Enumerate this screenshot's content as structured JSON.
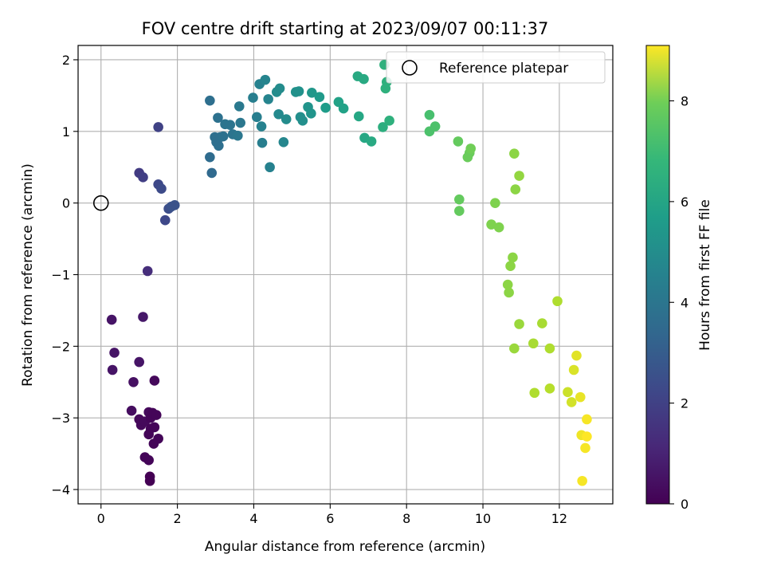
{
  "chart_data": {
    "type": "scatter",
    "title": "FOV centre drift starting at 2023/09/07 00:11:37",
    "xlabel": "Angular distance from reference (arcmin)",
    "ylabel": "Rotation from reference (arcmin)",
    "xlim": [
      -0.6,
      13.4
    ],
    "ylim": [
      -4.2,
      2.2
    ],
    "xticks": [
      0,
      2,
      4,
      6,
      8,
      10,
      12
    ],
    "yticks": [
      -4,
      -3,
      -2,
      -1,
      0,
      1,
      2
    ],
    "grid": true,
    "colormap": "viridis",
    "colorbar": {
      "label": "Hours from first FF file",
      "range": [
        0,
        9.1
      ],
      "ticks": [
        0,
        2,
        4,
        6,
        8
      ]
    },
    "legend": {
      "location": "top-right",
      "entries": [
        "Reference platepar"
      ]
    },
    "reference_point": {
      "x": 0,
      "y": 0
    },
    "points": [
      {
        "x": 0.28,
        "y": -1.63,
        "h": 0.5
      },
      {
        "x": 0.35,
        "y": -2.09,
        "h": 0.5
      },
      {
        "x": 0.3,
        "y": -2.33,
        "h": 0.5
      },
      {
        "x": 0.85,
        "y": -2.5,
        "h": 0.4
      },
      {
        "x": 0.8,
        "y": -2.9,
        "h": 0.3
      },
      {
        "x": 1.0,
        "y": -2.22,
        "h": 0.5
      },
      {
        "x": 1.1,
        "y": -1.59,
        "h": 0.6
      },
      {
        "x": 1.0,
        "y": -3.02,
        "h": 0.2
      },
      {
        "x": 1.05,
        "y": -3.1,
        "h": 0.2
      },
      {
        "x": 1.15,
        "y": -3.05,
        "h": 0.2
      },
      {
        "x": 1.25,
        "y": -2.92,
        "h": 0.2
      },
      {
        "x": 1.3,
        "y": -3.0,
        "h": 0.1
      },
      {
        "x": 1.35,
        "y": -2.93,
        "h": 0.1
      },
      {
        "x": 1.45,
        "y": -2.96,
        "h": 0.1
      },
      {
        "x": 1.3,
        "y": -3.15,
        "h": 0.1
      },
      {
        "x": 1.4,
        "y": -3.13,
        "h": 0.1
      },
      {
        "x": 1.25,
        "y": -3.23,
        "h": 0.1
      },
      {
        "x": 1.5,
        "y": -3.29,
        "h": 0.1
      },
      {
        "x": 1.38,
        "y": -3.36,
        "h": 0.1
      },
      {
        "x": 1.15,
        "y": -3.55,
        "h": 0.1
      },
      {
        "x": 1.25,
        "y": -3.59,
        "h": 0.1
      },
      {
        "x": 1.28,
        "y": -3.82,
        "h": 0.0
      },
      {
        "x": 1.28,
        "y": -3.88,
        "h": 0.0
      },
      {
        "x": 1.4,
        "y": -2.48,
        "h": 0.2
      },
      {
        "x": 1.22,
        "y": -0.95,
        "h": 1.2
      },
      {
        "x": 1.0,
        "y": 0.42,
        "h": 1.6
      },
      {
        "x": 1.1,
        "y": 0.36,
        "h": 1.7
      },
      {
        "x": 1.5,
        "y": 1.06,
        "h": 1.8
      },
      {
        "x": 1.5,
        "y": 0.26,
        "h": 2.0
      },
      {
        "x": 1.58,
        "y": 0.2,
        "h": 2.1
      },
      {
        "x": 1.68,
        "y": -0.24,
        "h": 2.0
      },
      {
        "x": 1.77,
        "y": -0.08,
        "h": 2.2
      },
      {
        "x": 1.84,
        "y": -0.05,
        "h": 2.3
      },
      {
        "x": 1.93,
        "y": -0.03,
        "h": 2.3
      },
      {
        "x": 2.85,
        "y": 1.43,
        "h": 3.3
      },
      {
        "x": 2.85,
        "y": 0.64,
        "h": 3.2
      },
      {
        "x": 2.9,
        "y": 0.42,
        "h": 3.1
      },
      {
        "x": 2.98,
        "y": 0.92,
        "h": 3.3
      },
      {
        "x": 3.02,
        "y": 0.85,
        "h": 3.3
      },
      {
        "x": 3.06,
        "y": 1.19,
        "h": 3.4
      },
      {
        "x": 3.08,
        "y": 0.8,
        "h": 3.3
      },
      {
        "x": 3.12,
        "y": 0.92,
        "h": 3.3
      },
      {
        "x": 3.2,
        "y": 0.93,
        "h": 3.4
      },
      {
        "x": 3.25,
        "y": 1.1,
        "h": 3.5
      },
      {
        "x": 3.38,
        "y": 1.09,
        "h": 3.5
      },
      {
        "x": 3.45,
        "y": 0.96,
        "h": 3.5
      },
      {
        "x": 3.58,
        "y": 0.94,
        "h": 3.6
      },
      {
        "x": 3.62,
        "y": 1.35,
        "h": 3.7
      },
      {
        "x": 3.65,
        "y": 1.12,
        "h": 3.6
      },
      {
        "x": 3.98,
        "y": 1.47,
        "h": 3.9
      },
      {
        "x": 4.08,
        "y": 1.2,
        "h": 3.9
      },
      {
        "x": 4.15,
        "y": 1.66,
        "h": 4.0
      },
      {
        "x": 4.2,
        "y": 1.07,
        "h": 4.0
      },
      {
        "x": 4.22,
        "y": 0.84,
        "h": 3.9
      },
      {
        "x": 4.3,
        "y": 1.72,
        "h": 4.1
      },
      {
        "x": 4.38,
        "y": 1.45,
        "h": 4.1
      },
      {
        "x": 4.42,
        "y": 0.5,
        "h": 4.0
      },
      {
        "x": 4.6,
        "y": 1.55,
        "h": 4.4
      },
      {
        "x": 4.68,
        "y": 1.6,
        "h": 4.4
      },
      {
        "x": 4.65,
        "y": 1.24,
        "h": 4.3
      },
      {
        "x": 4.78,
        "y": 0.85,
        "h": 4.2
      },
      {
        "x": 4.85,
        "y": 1.17,
        "h": 4.4
      },
      {
        "x": 5.1,
        "y": 1.55,
        "h": 4.6
      },
      {
        "x": 5.18,
        "y": 1.56,
        "h": 4.6
      },
      {
        "x": 5.22,
        "y": 1.2,
        "h": 4.5
      },
      {
        "x": 5.28,
        "y": 1.15,
        "h": 4.5
      },
      {
        "x": 5.42,
        "y": 1.34,
        "h": 4.7
      },
      {
        "x": 5.5,
        "y": 1.25,
        "h": 4.7
      },
      {
        "x": 5.52,
        "y": 1.54,
        "h": 4.8
      },
      {
        "x": 5.72,
        "y": 1.48,
        "h": 4.9
      },
      {
        "x": 5.88,
        "y": 1.33,
        "h": 5.0
      },
      {
        "x": 6.22,
        "y": 1.41,
        "h": 5.2
      },
      {
        "x": 6.35,
        "y": 1.32,
        "h": 5.2
      },
      {
        "x": 6.72,
        "y": 1.77,
        "h": 5.5
      },
      {
        "x": 6.75,
        "y": 1.21,
        "h": 5.4
      },
      {
        "x": 6.88,
        "y": 1.73,
        "h": 5.5
      },
      {
        "x": 6.9,
        "y": 0.91,
        "h": 5.4
      },
      {
        "x": 7.08,
        "y": 0.86,
        "h": 5.5
      },
      {
        "x": 7.38,
        "y": 1.06,
        "h": 5.7
      },
      {
        "x": 7.42,
        "y": 1.93,
        "h": 5.8
      },
      {
        "x": 7.45,
        "y": 1.6,
        "h": 5.8
      },
      {
        "x": 7.48,
        "y": 1.69,
        "h": 5.8
      },
      {
        "x": 7.55,
        "y": 1.15,
        "h": 5.8
      },
      {
        "x": 8.6,
        "y": 1.23,
        "h": 6.4
      },
      {
        "x": 8.6,
        "y": 1.0,
        "h": 6.5
      },
      {
        "x": 8.75,
        "y": 1.07,
        "h": 6.5
      },
      {
        "x": 9.35,
        "y": 0.86,
        "h": 6.9
      },
      {
        "x": 9.38,
        "y": 0.05,
        "h": 6.9
      },
      {
        "x": 9.38,
        "y": -0.11,
        "h": 6.9
      },
      {
        "x": 9.6,
        "y": 0.64,
        "h": 7.0
      },
      {
        "x": 9.65,
        "y": 0.7,
        "h": 7.0
      },
      {
        "x": 9.68,
        "y": 0.76,
        "h": 7.1
      },
      {
        "x": 10.22,
        "y": -0.3,
        "h": 7.3
      },
      {
        "x": 10.32,
        "y": 0.0,
        "h": 7.3
      },
      {
        "x": 10.42,
        "y": -0.34,
        "h": 7.3
      },
      {
        "x": 10.65,
        "y": -1.14,
        "h": 7.5
      },
      {
        "x": 10.68,
        "y": -1.25,
        "h": 7.5
      },
      {
        "x": 10.72,
        "y": -0.88,
        "h": 7.5
      },
      {
        "x": 10.78,
        "y": -0.76,
        "h": 7.5
      },
      {
        "x": 10.82,
        "y": 0.69,
        "h": 7.5
      },
      {
        "x": 10.85,
        "y": 0.19,
        "h": 7.5
      },
      {
        "x": 10.82,
        "y": -2.03,
        "h": 7.7
      },
      {
        "x": 10.95,
        "y": 0.38,
        "h": 7.6
      },
      {
        "x": 10.95,
        "y": -1.69,
        "h": 7.7
      },
      {
        "x": 11.32,
        "y": -1.96,
        "h": 7.9
      },
      {
        "x": 11.35,
        "y": -2.65,
        "h": 8.0
      },
      {
        "x": 11.55,
        "y": -1.68,
        "h": 7.9
      },
      {
        "x": 11.75,
        "y": -2.03,
        "h": 8.0
      },
      {
        "x": 11.75,
        "y": -2.59,
        "h": 8.1
      },
      {
        "x": 11.95,
        "y": -1.37,
        "h": 8.0
      },
      {
        "x": 12.22,
        "y": -2.64,
        "h": 8.4
      },
      {
        "x": 12.32,
        "y": -2.78,
        "h": 8.5
      },
      {
        "x": 12.38,
        "y": -2.33,
        "h": 8.6
      },
      {
        "x": 12.45,
        "y": -2.13,
        "h": 8.7
      },
      {
        "x": 12.55,
        "y": -2.71,
        "h": 8.8
      },
      {
        "x": 12.58,
        "y": -3.24,
        "h": 8.9
      },
      {
        "x": 12.6,
        "y": -3.88,
        "h": 9.0
      },
      {
        "x": 12.68,
        "y": -3.42,
        "h": 9.0
      },
      {
        "x": 12.72,
        "y": -3.02,
        "h": 9.0
      },
      {
        "x": 12.72,
        "y": -3.26,
        "h": 9.1
      }
    ]
  }
}
